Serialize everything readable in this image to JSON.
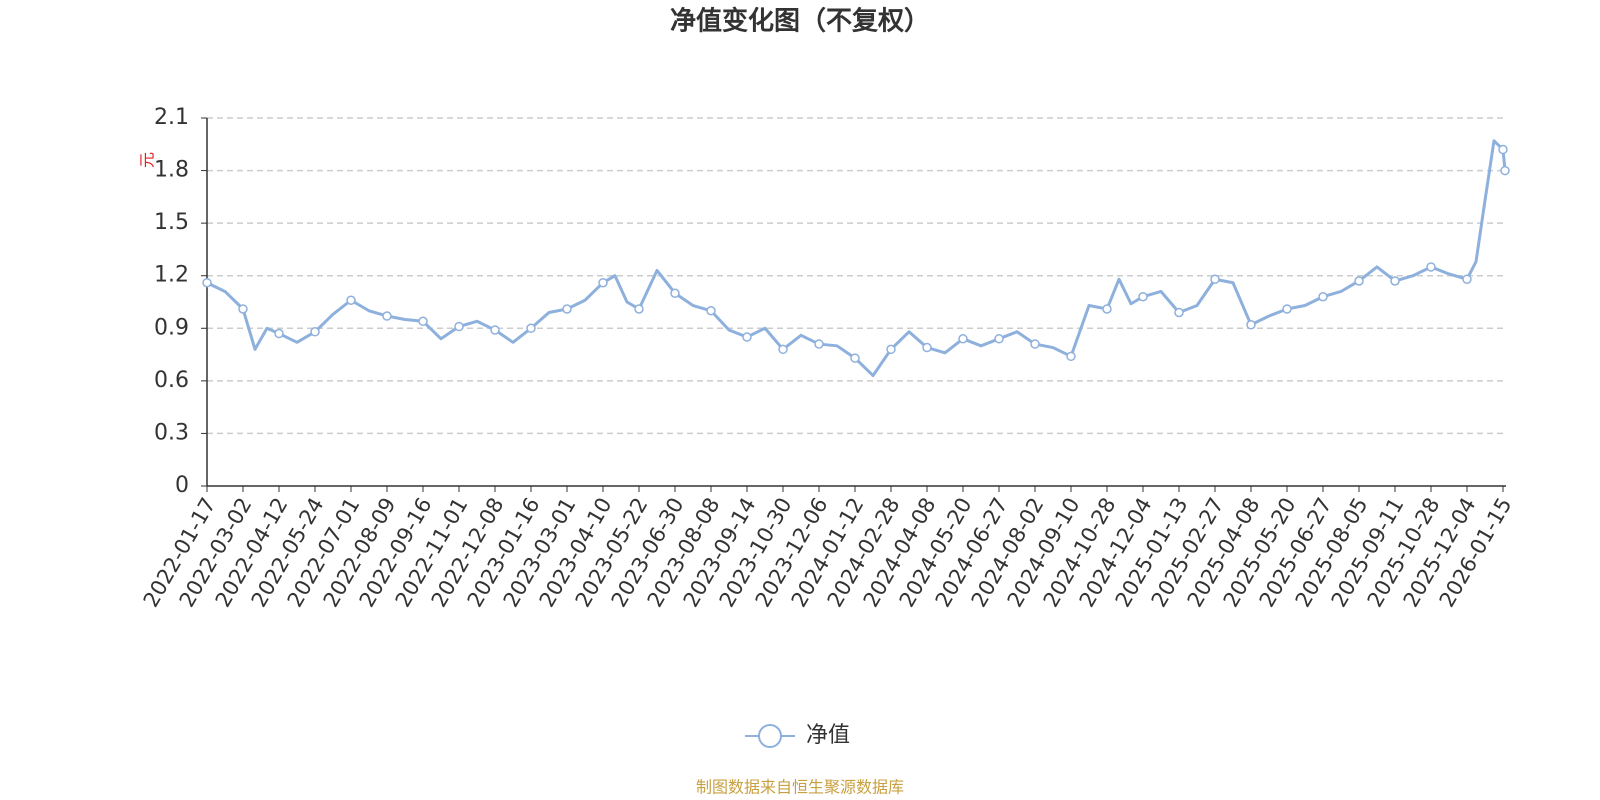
{
  "chart_data": {
    "type": "line",
    "title": "净值变化图（不复权）",
    "y_label": "元",
    "source": "制图数据来自恒生聚源数据库",
    "categories": [
      "2022-01-17",
      null,
      "2022-03-02",
      null,
      null,
      "2022-04-12",
      null,
      "2022-05-24",
      null,
      "2022-07-01",
      null,
      "2022-08-09",
      null,
      "2022-09-16",
      null,
      "2022-11-01",
      null,
      "2022-12-08",
      null,
      "2023-01-16",
      null,
      "2023-03-01",
      null,
      "2023-04-10",
      null,
      null,
      "2023-05-22",
      null,
      "2023-06-30",
      null,
      "2023-08-08",
      null,
      "2023-09-14",
      null,
      "2023-10-30",
      null,
      "2023-12-06",
      null,
      "2024-01-12",
      null,
      "2024-02-28",
      null,
      "2024-04-08",
      null,
      "2024-05-20",
      null,
      "2024-06-27",
      null,
      "2024-08-02",
      null,
      "2024-09-10",
      null,
      "2024-10-28",
      null,
      null,
      "2024-12-04",
      null,
      "2025-01-13",
      null,
      "2025-02-27",
      null,
      "2025-04-08",
      null,
      "2025-05-20",
      null,
      "2025-06-27",
      null,
      "2025-08-05",
      null,
      "2025-09-11",
      null,
      "2025-10-28",
      null,
      "2025-12-04",
      null,
      null,
      null,
      "2026-01-15",
      null
    ],
    "series": [
      {
        "name": "净值",
        "color": "#8eb0dd",
        "values": [
          1.16,
          1.11,
          1.01,
          0.78,
          0.9,
          0.87,
          0.82,
          0.88,
          0.98,
          1.06,
          1.0,
          0.97,
          0.95,
          0.94,
          0.84,
          0.91,
          0.94,
          0.89,
          0.82,
          0.9,
          0.99,
          1.01,
          1.06,
          1.16,
          1.2,
          1.05,
          1.01,
          1.23,
          1.1,
          1.03,
          1.0,
          0.89,
          0.85,
          0.9,
          0.78,
          0.86,
          0.81,
          0.8,
          0.73,
          0.63,
          0.78,
          0.88,
          0.79,
          0.76,
          0.84,
          0.8,
          0.84,
          0.88,
          0.81,
          0.79,
          0.74,
          1.03,
          1.01,
          1.18,
          1.04,
          1.08,
          1.11,
          0.99,
          1.03,
          1.18,
          1.16,
          0.92,
          0.97,
          1.01,
          1.03,
          1.08,
          1.11,
          1.17,
          1.25,
          1.17,
          1.2,
          1.25,
          1.21,
          1.18,
          1.28,
          1.63,
          1.97,
          1.92,
          1.8
        ]
      }
    ],
    "ylim": [
      0,
      2.1
    ],
    "yticks": [
      0,
      0.3,
      0.6,
      0.9,
      1.2,
      1.5,
      1.8,
      2.1
    ],
    "grid": true
  }
}
